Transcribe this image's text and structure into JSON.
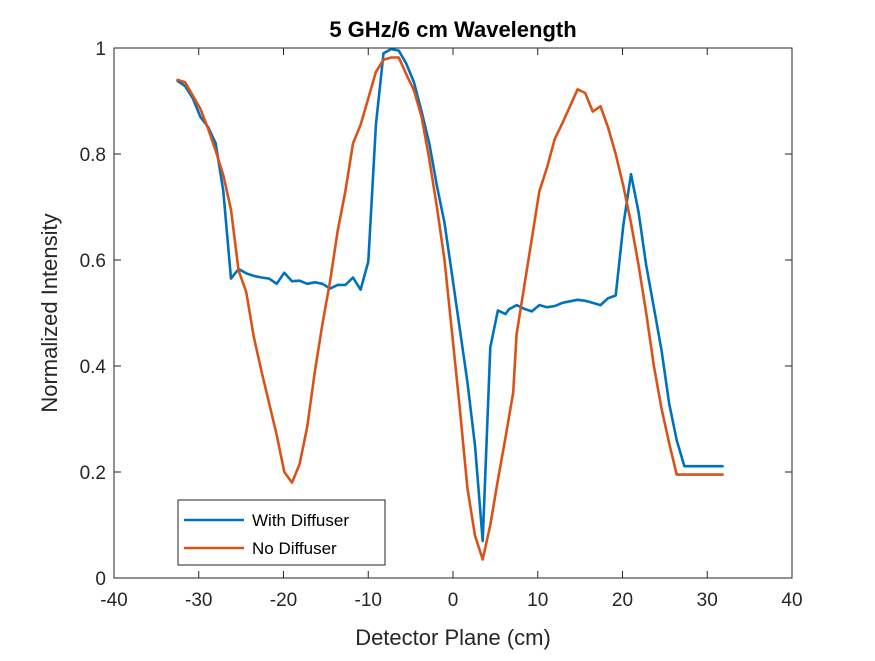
{
  "chart_data": {
    "type": "line",
    "title": "5 GHz/6 cm Wavelength",
    "xlabel": "Detector Plane (cm)",
    "ylabel": "Normalized Intensity",
    "xlim": [
      -40,
      40
    ],
    "ylim": [
      0,
      1
    ],
    "xticks": [
      -40,
      -30,
      -20,
      -10,
      0,
      10,
      20,
      30,
      40
    ],
    "yticks": [
      0,
      0.2,
      0.4,
      0.6,
      0.8,
      1
    ],
    "xtick_labels": [
      "-40",
      "-30",
      "-20",
      "-10",
      "0",
      "10",
      "20",
      "30",
      "40"
    ],
    "ytick_labels": [
      "0",
      "0.2",
      "0.4",
      "0.6",
      "0.8",
      "1"
    ],
    "grid": false,
    "legend_position": "bottom-left",
    "series": [
      {
        "name": "With Diffuser",
        "color": "#0072BD",
        "x": [
          -32.5,
          -31.6,
          -30.7,
          -29.8,
          -28.9,
          -28.0,
          -27.1,
          -26.2,
          -25.3,
          -24.4,
          -23.5,
          -22.6,
          -21.7,
          -20.8,
          -19.9,
          -19.0,
          -18.1,
          -17.2,
          -16.3,
          -15.4,
          -14.5,
          -13.6,
          -12.7,
          -11.8,
          -10.9,
          -10.0,
          -9.1,
          -8.2,
          -7.3,
          -6.4,
          -5.5,
          -4.6,
          -3.7,
          -2.8,
          -1.9,
          -1.0,
          -0.1,
          0.8,
          1.7,
          2.6,
          3.5,
          4.4,
          5.3,
          6.2,
          6.6,
          7.5,
          8.4,
          9.3,
          10.2,
          11.1,
          12.0,
          12.9,
          13.8,
          14.7,
          15.6,
          16.5,
          17.4,
          18.3,
          19.2,
          20.1,
          21.0,
          21.9,
          22.8,
          23.7,
          24.6,
          25.5,
          26.4,
          27.3,
          28.2,
          29.1,
          30.0,
          30.9,
          31.8,
          32.7
        ],
        "y": [
          0.938,
          0.928,
          0.905,
          0.87,
          0.851,
          0.82,
          0.73,
          0.565,
          0.583,
          0.575,
          0.57,
          0.567,
          0.565,
          0.555,
          0.576,
          0.56,
          0.561,
          0.555,
          0.558,
          0.555,
          0.546,
          0.553,
          0.553,
          0.567,
          0.544,
          0.597,
          0.855,
          0.99,
          0.998,
          0.995,
          0.97,
          0.935,
          0.88,
          0.82,
          0.74,
          0.67,
          0.57,
          0.47,
          0.37,
          0.25,
          0.07,
          0.435,
          0.505,
          0.498,
          0.507,
          0.515,
          0.508,
          0.503,
          0.515,
          0.511,
          0.513,
          0.519,
          0.522,
          0.525,
          0.523,
          0.519,
          0.515,
          0.528,
          0.533,
          0.665,
          0.762,
          0.69,
          0.59,
          0.51,
          0.43,
          0.33,
          0.26,
          0.211,
          0.211,
          0.211,
          0.211,
          0.211,
          0.211,
          0.211
        ]
      },
      {
        "name": "No Diffuser",
        "color": "#D95319",
        "x": [
          -32.5,
          -31.6,
          -30.7,
          -29.8,
          -28.9,
          -28.0,
          -27.1,
          -26.2,
          -25.3,
          -24.4,
          -23.5,
          -22.6,
          -21.7,
          -20.8,
          -19.9,
          -19.0,
          -18.1,
          -17.2,
          -16.3,
          -15.4,
          -14.5,
          -13.6,
          -12.7,
          -11.8,
          -10.9,
          -10.0,
          -9.1,
          -8.2,
          -7.3,
          -6.4,
          -5.5,
          -4.6,
          -3.7,
          -2.8,
          -1.9,
          -1.0,
          -0.1,
          0.8,
          1.7,
          2.6,
          3.5,
          4.4,
          5.3,
          6.2,
          7.1,
          7.5,
          8.4,
          9.3,
          10.2,
          11.1,
          12.0,
          12.9,
          13.8,
          14.7,
          15.6,
          16.5,
          17.4,
          18.3,
          19.2,
          20.1,
          21.0,
          21.9,
          22.8,
          23.7,
          24.6,
          25.5,
          26.4,
          27.3,
          28.2,
          29.1,
          30.0,
          30.9,
          31.8,
          32.7
        ],
        "y": [
          0.94,
          0.935,
          0.91,
          0.885,
          0.848,
          0.806,
          0.76,
          0.695,
          0.58,
          0.54,
          0.455,
          0.39,
          0.33,
          0.27,
          0.2,
          0.18,
          0.215,
          0.285,
          0.39,
          0.48,
          0.56,
          0.655,
          0.73,
          0.82,
          0.855,
          0.905,
          0.955,
          0.978,
          0.982,
          0.982,
          0.95,
          0.92,
          0.87,
          0.79,
          0.7,
          0.6,
          0.46,
          0.32,
          0.17,
          0.08,
          0.035,
          0.1,
          0.185,
          0.265,
          0.35,
          0.46,
          0.55,
          0.64,
          0.73,
          0.775,
          0.828,
          0.858,
          0.89,
          0.922,
          0.915,
          0.88,
          0.89,
          0.85,
          0.8,
          0.74,
          0.67,
          0.59,
          0.5,
          0.4,
          0.32,
          0.255,
          0.195,
          0.195,
          0.195,
          0.195,
          0.195,
          0.195,
          0.195,
          0.195
        ]
      }
    ]
  }
}
